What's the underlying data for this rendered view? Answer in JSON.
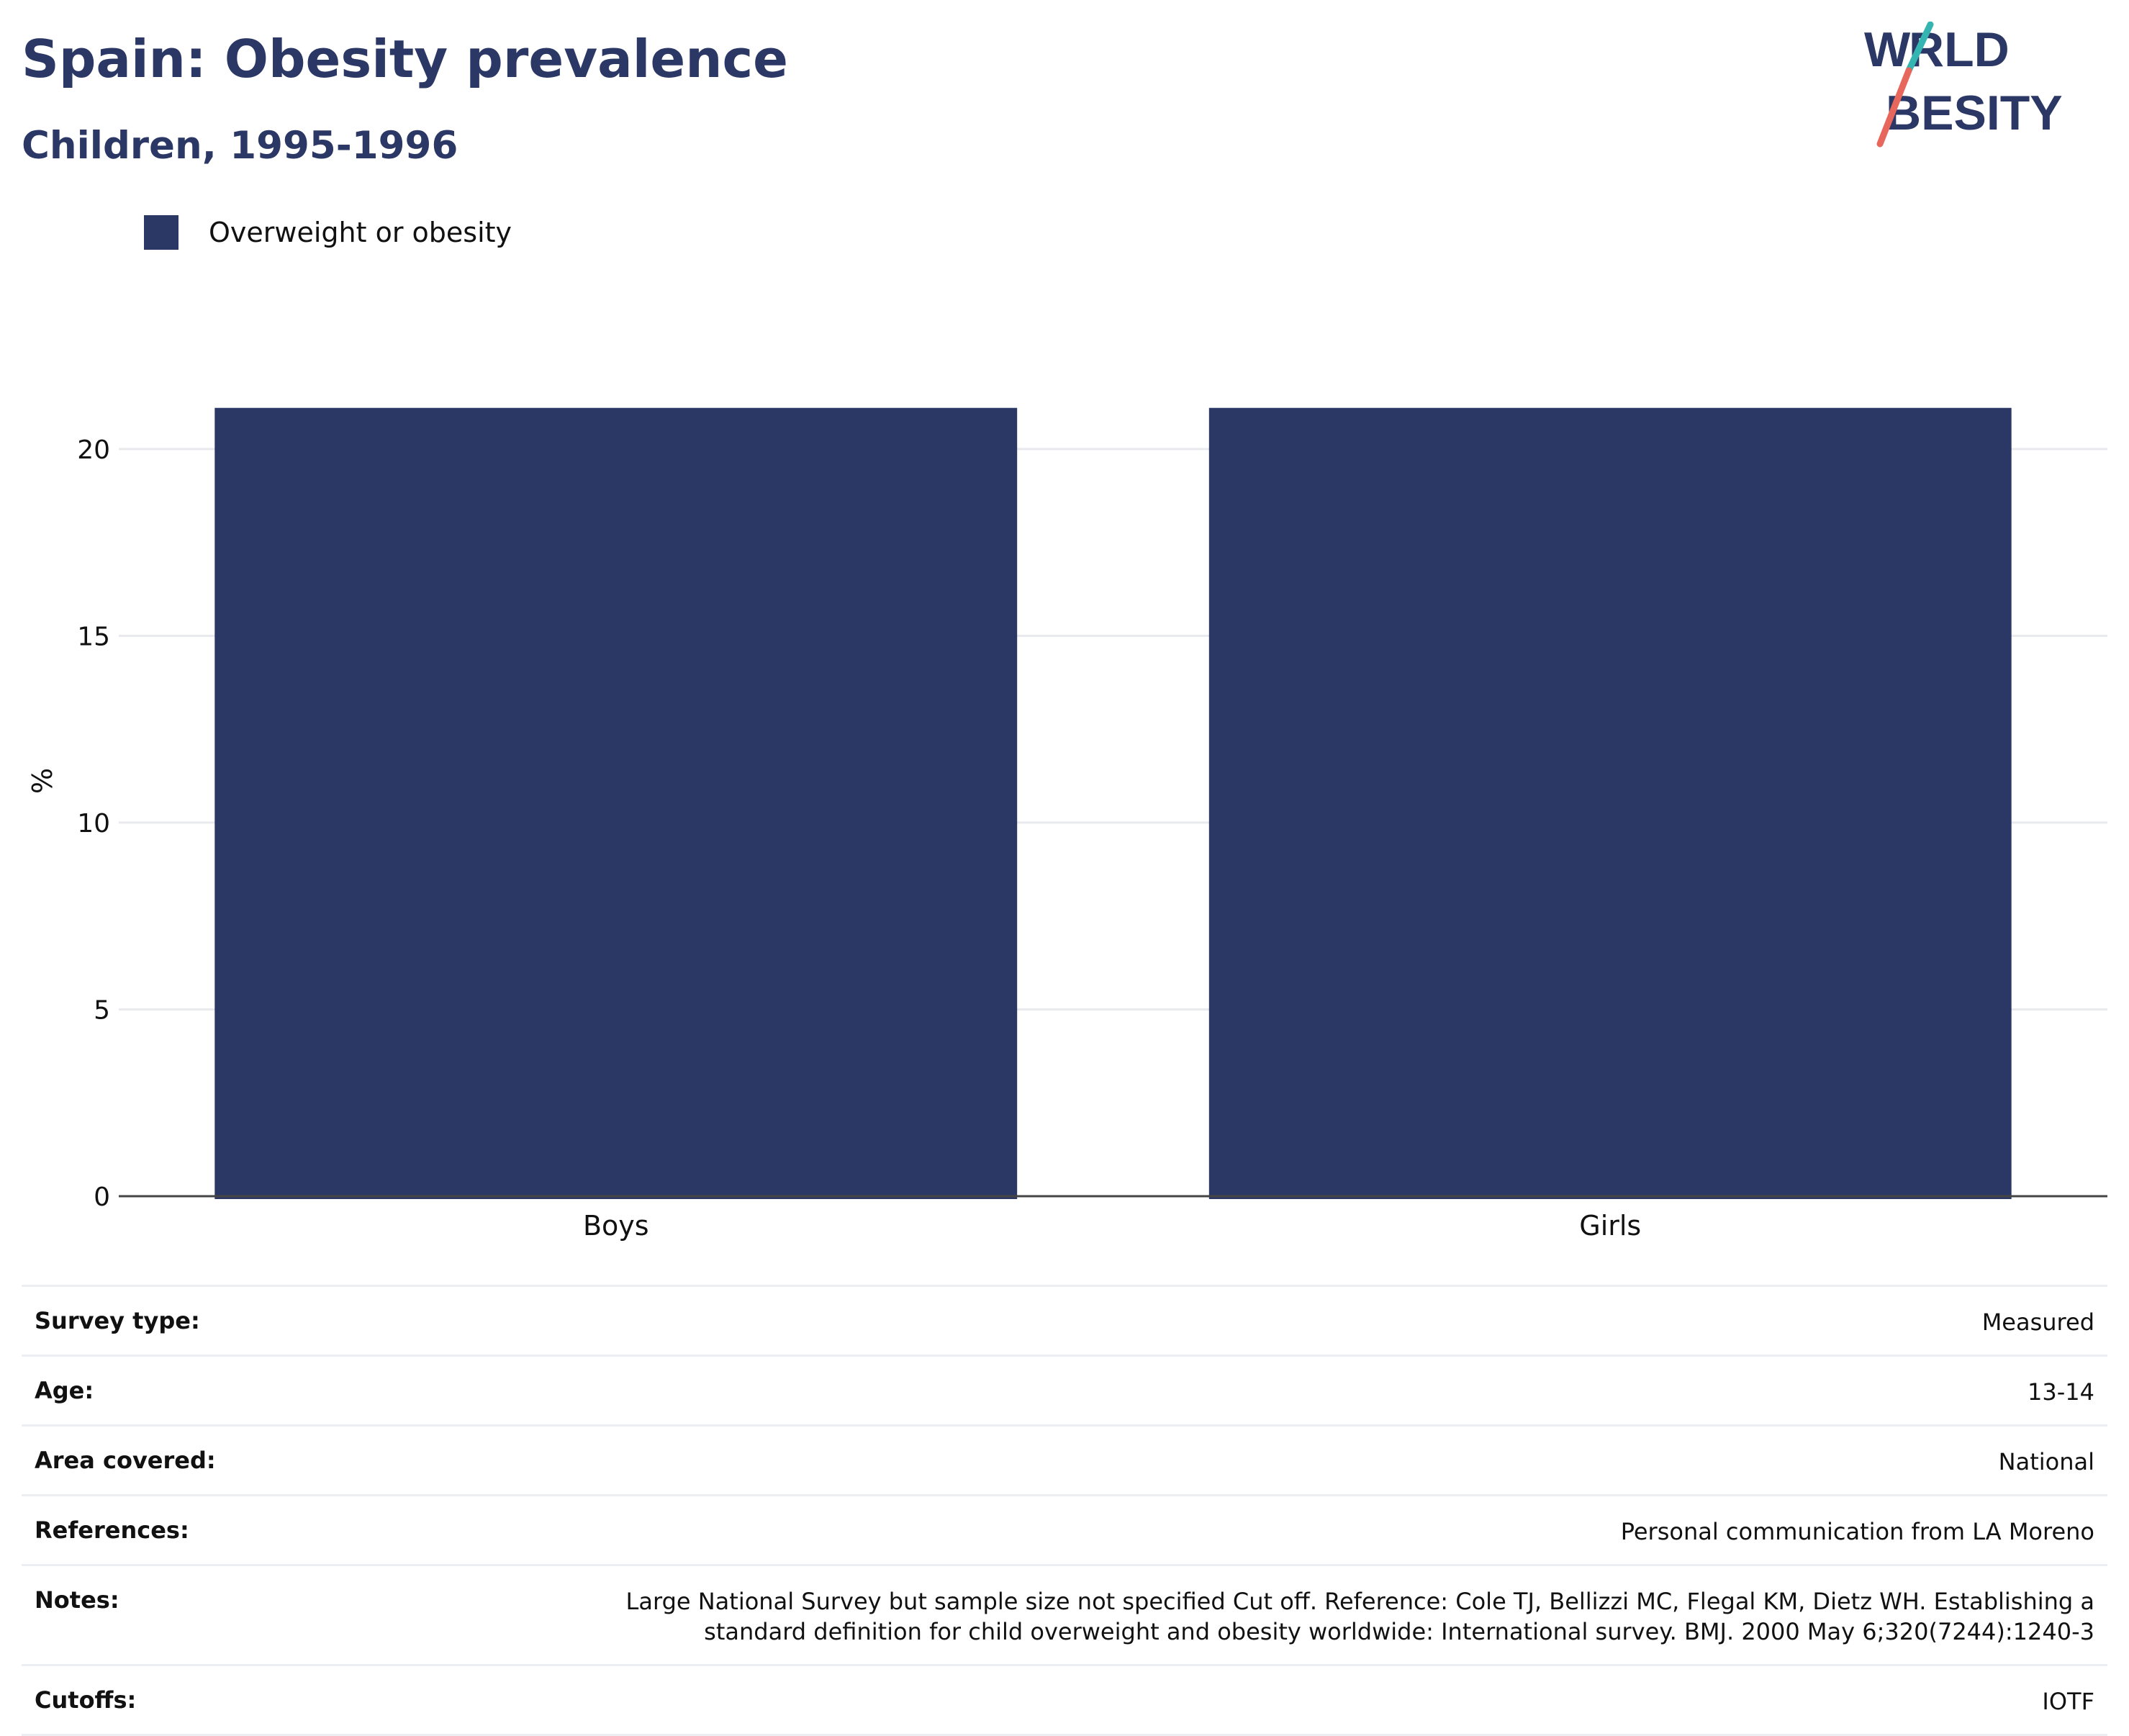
{
  "header": {
    "title": "Spain: Obesity prevalence",
    "subtitle": "Children, 1995-1996",
    "logo_text": "WORLD OBESITY"
  },
  "legend": {
    "items": [
      {
        "label": "Overweight or obesity",
        "color": "#2b3765"
      }
    ]
  },
  "colors": {
    "bar": "#2b3765",
    "brand_navy": "#2b3765",
    "logo_teal": "#35b5b1",
    "logo_coral": "#e7675c"
  },
  "chart_data": {
    "type": "bar",
    "categories": [
      "Boys",
      "Girls"
    ],
    "series": [
      {
        "name": "Overweight or obesity",
        "values": [
          21.1,
          21.1
        ]
      }
    ],
    "title": "Spain: Obesity prevalence",
    "subtitle": "Children, 1995-1996",
    "xlabel": "",
    "ylabel": "%",
    "ylim": [
      0,
      22
    ],
    "yticks": [
      0,
      5,
      10,
      15,
      20
    ],
    "grid": true,
    "legend_position": "top-left"
  },
  "meta": {
    "rows": [
      {
        "label": "Survey type:",
        "value": "Measured"
      },
      {
        "label": "Age:",
        "value": "13-14"
      },
      {
        "label": "Area covered:",
        "value": "National"
      },
      {
        "label": "References:",
        "value": "Personal communication from LA Moreno"
      },
      {
        "label": "Notes:",
        "value": "Large National Survey but sample size not specified Cut off. Reference: Cole TJ, Bellizzi MC, Flegal KM, Dietz WH. Establishing a standard definition for child overweight and obesity worldwide: International survey. BMJ. 2000 May 6;320(7244):1240-3"
      },
      {
        "label": "Cutoffs:",
        "value": "IOTF"
      }
    ]
  }
}
